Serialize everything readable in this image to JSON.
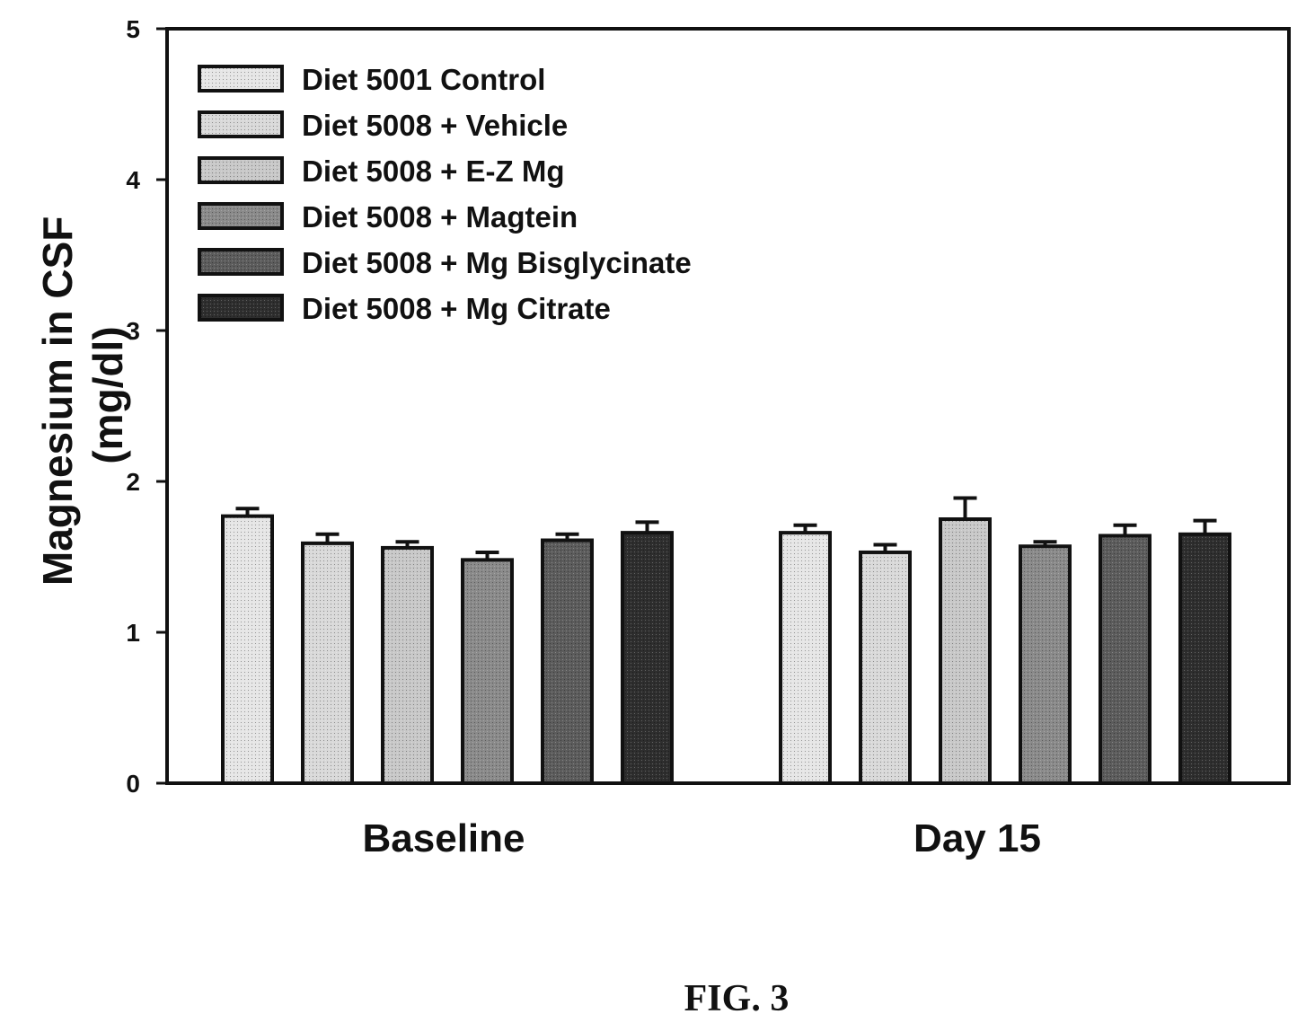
{
  "figure_caption": "FIG. 3",
  "chart_data": {
    "type": "bar",
    "title": "",
    "xlabel": "",
    "ylabel_lines": [
      "Magnesium in CSF",
      "(mg/dl)"
    ],
    "ylim": [
      0,
      5
    ],
    "yticks": [
      0,
      1,
      2,
      3,
      4,
      5
    ],
    "categories": [
      "Baseline",
      "Day 15"
    ],
    "legend_position": "top-left",
    "grid": false,
    "series": [
      {
        "name": "Diet 5001 Control",
        "values": [
          1.77,
          1.66
        ],
        "errors": [
          0.05,
          0.05
        ],
        "color": "#e6e6e6"
      },
      {
        "name": "Diet 5008 + Vehicle",
        "values": [
          1.59,
          1.53
        ],
        "errors": [
          0.06,
          0.05
        ],
        "color": "#d9d9d9"
      },
      {
        "name": "Diet 5008 + E-Z Mg",
        "values": [
          1.56,
          1.75
        ],
        "errors": [
          0.04,
          0.14
        ],
        "color": "#c8c8c8"
      },
      {
        "name": "Diet 5008 + Magtein",
        "values": [
          1.48,
          1.57
        ],
        "errors": [
          0.05,
          0.03
        ],
        "color": "#8a8a8a"
      },
      {
        "name": "Diet 5008 + Mg Bisglycinate",
        "values": [
          1.61,
          1.64
        ],
        "errors": [
          0.04,
          0.07
        ],
        "color": "#5c5c5c"
      },
      {
        "name": "Diet 5008 + Mg Citrate",
        "values": [
          1.66,
          1.65
        ],
        "errors": [
          0.07,
          0.09
        ],
        "color": "#2e2e2e"
      }
    ]
  }
}
